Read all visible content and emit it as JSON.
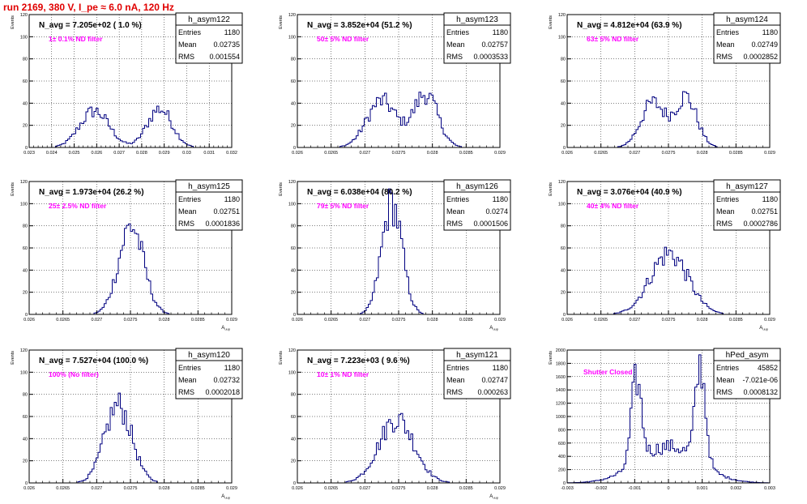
{
  "header": {
    "title": "run 2169,   380 V, I_pe ≈ 6.0 nA, 120 Hz"
  },
  "colors": {
    "title": "#e00000",
    "annotation": "#ff00ff",
    "histogram": "#000080"
  },
  "chart_data": [
    {
      "type": "histogram",
      "name": "h_asym122",
      "nlabel": "N_avg = 7.205e+02 ( 1.0 %)",
      "filter": "1± 0.1% ND filter",
      "stats": {
        "entries": "1180",
        "mean": "0.02735",
        "rms": "0.001554"
      },
      "xlim": [
        0.023,
        0.032
      ],
      "ylim": [
        0,
        120
      ],
      "ylabel": "Events",
      "xlabel": "",
      "xticks": [
        "0.023",
        "0.024",
        "0.025",
        "0.026",
        "0.027",
        "0.028",
        "0.029",
        "0.03",
        "0.031",
        "0.032"
      ],
      "yticks": [
        "0",
        "20",
        "40",
        "60",
        "80",
        "100",
        "120"
      ],
      "dist": [
        {
          "mu": 0.0259,
          "sigma": 0.00065,
          "peak": 33
        },
        {
          "mu": 0.0288,
          "sigma": 0.00055,
          "peak": 35
        }
      ]
    },
    {
      "type": "histogram",
      "name": "h_asym123",
      "nlabel": "N_avg = 3.852e+04 (51.2 %)",
      "filter": "50± 5% ND filter",
      "stats": {
        "entries": "1180",
        "mean": "0.02757",
        "rms": "0.0003533"
      },
      "xlim": [
        0.026,
        0.029
      ],
      "ylim": [
        0,
        120
      ],
      "ylabel": "Events",
      "xlabel": "",
      "xticks": [
        "0.026",
        "0.0265",
        "0.027",
        "0.0275",
        "0.028",
        "0.0285",
        "0.029"
      ],
      "yticks": [
        "0",
        "20",
        "40",
        "60",
        "80",
        "100",
        "120"
      ],
      "dist": [
        {
          "mu": 0.02725,
          "sigma": 0.00022,
          "peak": 42
        },
        {
          "mu": 0.0279,
          "sigma": 0.00018,
          "peak": 48
        }
      ]
    },
    {
      "type": "histogram",
      "name": "h_asym124",
      "nlabel": "N_avg = 4.812e+04 (63.9 %)",
      "filter": "63± 5% ND filter",
      "stats": {
        "entries": "1180",
        "mean": "0.02749",
        "rms": "0.0002852"
      },
      "xlim": [
        0.026,
        0.029
      ],
      "ylim": [
        0,
        120
      ],
      "ylabel": "Events",
      "xlabel": "",
      "xticks": [
        "0.026",
        "0.0265",
        "0.027",
        "0.0275",
        "0.028",
        "0.0285",
        "0.029"
      ],
      "yticks": [
        "0",
        "20",
        "40",
        "60",
        "80",
        "100",
        "120"
      ],
      "dist": [
        {
          "mu": 0.02727,
          "sigma": 0.00018,
          "peak": 40
        },
        {
          "mu": 0.02776,
          "sigma": 0.00016,
          "peak": 45
        }
      ]
    },
    {
      "type": "histogram",
      "name": "h_asym125",
      "nlabel": "N_avg = 1.973e+04 (26.2 %)",
      "filter": "25± 2.5% ND filter",
      "stats": {
        "entries": "1180",
        "mean": "0.02751",
        "rms": "0.0001836"
      },
      "xlim": [
        0.026,
        0.029
      ],
      "ylim": [
        0,
        120
      ],
      "ylabel": "Events",
      "xlabel": "A_uup",
      "xticks": [
        "0.026",
        "0.0265",
        "0.027",
        "0.0275",
        "0.028",
        "0.0285",
        "0.029"
      ],
      "yticks": [
        "0",
        "20",
        "40",
        "60",
        "80",
        "100",
        "120"
      ],
      "dist": [
        {
          "mu": 0.02751,
          "sigma": 0.000184,
          "peak": 80
        }
      ]
    },
    {
      "type": "histogram",
      "name": "h_asym126",
      "nlabel": "N_avg = 6.038e+04 (80.2 %)",
      "filter": "79± 5% ND filter",
      "stats": {
        "entries": "1180",
        "mean": "0.0274",
        "rms": "0.0001506"
      },
      "xlim": [
        0.026,
        0.029
      ],
      "ylim": [
        0,
        120
      ],
      "ylabel": "Events",
      "xlabel": "A_uup",
      "xticks": [
        "0.026",
        "0.0265",
        "0.027",
        "0.0275",
        "0.028",
        "0.0285",
        "0.029"
      ],
      "yticks": [
        "0",
        "20",
        "40",
        "60",
        "80",
        "100",
        "120"
      ],
      "dist": [
        {
          "mu": 0.0274,
          "sigma": 0.00015,
          "peak": 100
        }
      ]
    },
    {
      "type": "histogram",
      "name": "h_asym127",
      "nlabel": "N_avg = 3.076e+04 (40.9 %)",
      "filter": "40± 4% ND filter",
      "stats": {
        "entries": "1180",
        "mean": "0.02751",
        "rms": "0.0002786"
      },
      "xlim": [
        0.026,
        0.029
      ],
      "ylim": [
        0,
        120
      ],
      "ylabel": "Events",
      "xlabel": "A_uup",
      "xticks": [
        "0.026",
        "0.0265",
        "0.027",
        "0.0275",
        "0.028",
        "0.0285",
        "0.029"
      ],
      "yticks": [
        "0",
        "20",
        "40",
        "60",
        "80",
        "100",
        "120"
      ],
      "dist": [
        {
          "mu": 0.02751,
          "sigma": 0.00028,
          "peak": 55
        }
      ]
    },
    {
      "type": "histogram",
      "name": "h_asym120",
      "nlabel": "N_avg = 7.527e+04 (100.0 %)",
      "filter": "100% (No filter)",
      "stats": {
        "entries": "1180",
        "mean": "0.02732",
        "rms": "0.0002018"
      },
      "xlim": [
        0.026,
        0.029
      ],
      "ylim": [
        0,
        120
      ],
      "ylabel": "Events",
      "xlabel": "A_uup",
      "xticks": [
        "0.026",
        "0.0265",
        "0.027",
        "0.0275",
        "0.028",
        "0.0285",
        "0.029"
      ],
      "yticks": [
        "0",
        "20",
        "40",
        "60",
        "80",
        "100",
        "120"
      ],
      "dist": [
        {
          "mu": 0.02732,
          "sigma": 0.0002,
          "peak": 70
        }
      ]
    },
    {
      "type": "histogram",
      "name": "h_asym121",
      "nlabel": "N_avg = 7.223e+03 ( 9.6 %)",
      "filter": "10± 1% ND filter",
      "stats": {
        "entries": "1180",
        "mean": "0.02747",
        "rms": "0.000263"
      },
      "xlim": [
        0.026,
        0.029
      ],
      "ylim": [
        0,
        120
      ],
      "ylabel": "Events",
      "xlabel": "A_uup",
      "xticks": [
        "0.026",
        "0.0265",
        "0.027",
        "0.0275",
        "0.028",
        "0.0285",
        "0.029"
      ],
      "yticks": [
        "0",
        "20",
        "40",
        "60",
        "80",
        "100",
        "120"
      ],
      "dist": [
        {
          "mu": 0.02747,
          "sigma": 0.00026,
          "peak": 58
        }
      ]
    },
    {
      "type": "histogram",
      "name": "hPed_asym",
      "nlabel": "",
      "filter": "Shutter Closed",
      "stats": {
        "entries": "45852",
        "mean": "-7.021e-06",
        "rms": "0.0008132"
      },
      "xlim": [
        -0.003,
        0.003
      ],
      "ylim": [
        0,
        2000
      ],
      "ylabel": "Events",
      "xlabel": "",
      "xticks": [
        "-0.003",
        "-0.002",
        "-0.001",
        "0",
        "0.001",
        "0.002",
        "0.003"
      ],
      "yticks": [
        "0",
        "200",
        "400",
        "600",
        "800",
        "1000",
        "1200",
        "1400",
        "1600",
        "1800",
        "2000"
      ],
      "dist": [
        {
          "mu": -0.00095,
          "sigma": 0.00015,
          "peak": 1250
        },
        {
          "mu": 0.00095,
          "sigma": 0.00015,
          "peak": 1450
        },
        {
          "mu": 0.0,
          "sigma": 0.0009,
          "peak": 550
        }
      ]
    }
  ]
}
